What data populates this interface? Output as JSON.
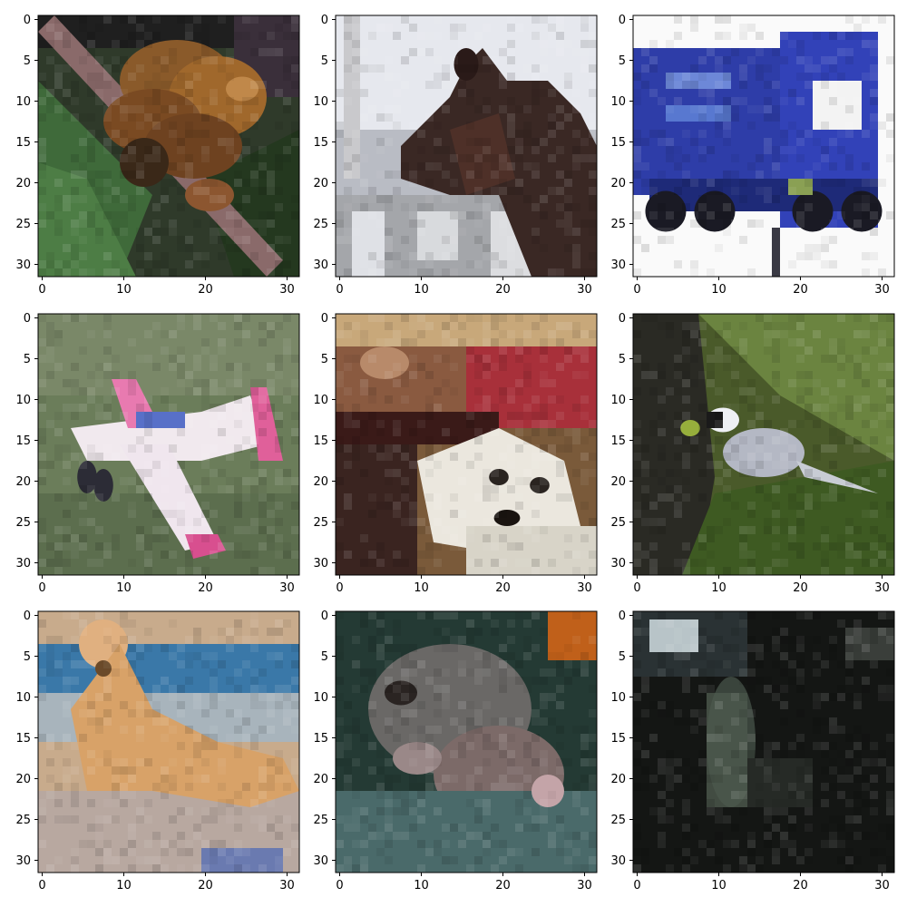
{
  "figure": {
    "background": "#ffffff",
    "grid_rows": 3,
    "grid_cols": 3
  },
  "panels": [
    {
      "subject": "frog",
      "x_ticks": [
        "0",
        "10",
        "20",
        "30"
      ],
      "y_ticks": [
        "0",
        "5",
        "10",
        "15",
        "20",
        "25",
        "30"
      ],
      "xlim": [
        -0.5,
        31.5
      ],
      "ylim": [
        31.5,
        -0.5
      ]
    },
    {
      "subject": "horse",
      "x_ticks": [
        "0",
        "10",
        "20",
        "30"
      ],
      "y_ticks": [
        "0",
        "5",
        "10",
        "15",
        "20",
        "25",
        "30"
      ],
      "xlim": [
        -0.5,
        31.5
      ],
      "ylim": [
        31.5,
        -0.5
      ]
    },
    {
      "subject": "truck",
      "x_ticks": [
        "0",
        "10",
        "20",
        "30"
      ],
      "y_ticks": [
        "0",
        "5",
        "10",
        "15",
        "20",
        "25",
        "30"
      ],
      "xlim": [
        -0.5,
        31.5
      ],
      "ylim": [
        31.5,
        -0.5
      ]
    },
    {
      "subject": "airplane",
      "x_ticks": [
        "0",
        "10",
        "20",
        "30"
      ],
      "y_ticks": [
        "0",
        "5",
        "10",
        "15",
        "20",
        "25",
        "30"
      ],
      "xlim": [
        -0.5,
        31.5
      ],
      "ylim": [
        31.5,
        -0.5
      ]
    },
    {
      "subject": "dog",
      "x_ticks": [
        "0",
        "10",
        "20",
        "30"
      ],
      "y_ticks": [
        "0",
        "5",
        "10",
        "15",
        "20",
        "25",
        "30"
      ],
      "xlim": [
        -0.5,
        31.5
      ],
      "ylim": [
        31.5,
        -0.5
      ]
    },
    {
      "subject": "bird",
      "x_ticks": [
        "0",
        "10",
        "20",
        "30"
      ],
      "y_ticks": [
        "0",
        "5",
        "10",
        "15",
        "20",
        "25",
        "30"
      ],
      "xlim": [
        -0.5,
        31.5
      ],
      "ylim": [
        31.5,
        -0.5
      ]
    },
    {
      "subject": "cat",
      "x_ticks": [
        "0",
        "10",
        "20",
        "30"
      ],
      "y_ticks": [
        "0",
        "5",
        "10",
        "15",
        "20",
        "25",
        "30"
      ],
      "xlim": [
        -0.5,
        31.5
      ],
      "ylim": [
        31.5,
        -0.5
      ]
    },
    {
      "subject": "cat",
      "x_ticks": [
        "0",
        "10",
        "20",
        "30"
      ],
      "y_ticks": [
        "0",
        "5",
        "10",
        "15",
        "20",
        "25",
        "30"
      ],
      "xlim": [
        -0.5,
        31.5
      ],
      "ylim": [
        31.5,
        -0.5
      ]
    },
    {
      "subject": "dark-scene",
      "x_ticks": [
        "0",
        "10",
        "20",
        "30"
      ],
      "y_ticks": [
        "0",
        "5",
        "10",
        "15",
        "20",
        "25",
        "30"
      ],
      "xlim": [
        -0.5,
        31.5
      ],
      "ylim": [
        31.5,
        -0.5
      ]
    }
  ]
}
